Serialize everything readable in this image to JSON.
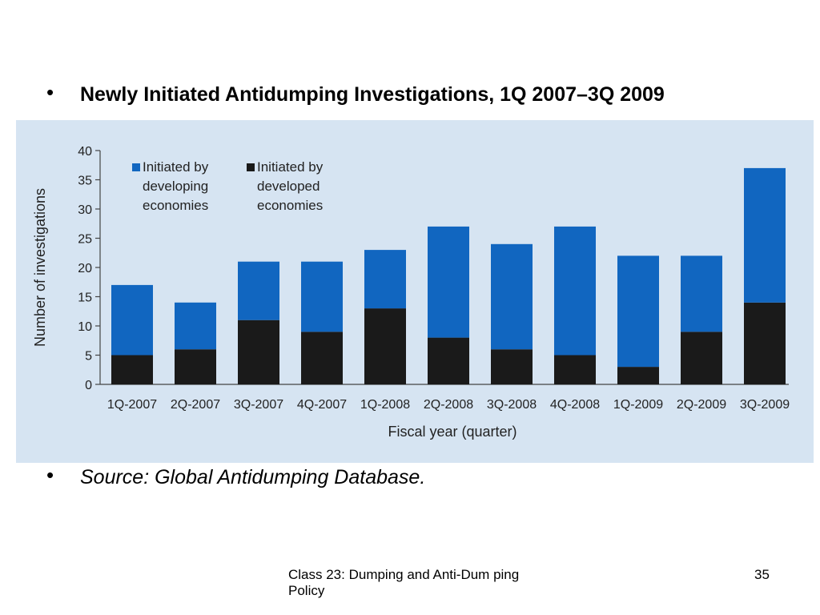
{
  "slide": {
    "bullets": [
      "Newly Initiated Antidumping Investigations, 1Q 2007–3Q 2009",
      "Source: Global Antidumping Database."
    ],
    "footer_text": "Class 23:  Dumping and Anti-Dum ping Policy",
    "page_number": "35",
    "bullet_char": "•"
  },
  "colors": {
    "developing": "#1166c0",
    "developed": "#1a1a1a",
    "panel_bg": "#d6e4f2",
    "axis": "#444444"
  },
  "chart_data": {
    "type": "bar",
    "stacked": true,
    "title": "Newly Initiated Antidumping Investigations, 1Q 2007–3Q 2009",
    "xlabel": "Fiscal year (quarter)",
    "ylabel": "Number of investigations",
    "ylim": [
      0,
      40
    ],
    "yticks": [
      0,
      5,
      10,
      15,
      20,
      25,
      30,
      35,
      40
    ],
    "grid": false,
    "legend_position": "top-left",
    "categories": [
      "1Q-2007",
      "2Q-2007",
      "3Q-2007",
      "4Q-2007",
      "1Q-2008",
      "2Q-2008",
      "3Q-2008",
      "4Q-2008",
      "1Q-2009",
      "2Q-2009",
      "3Q-2009"
    ],
    "series": [
      {
        "name": "Initiated by developed economies",
        "legend_lines": [
          "Initiated by",
          "developed",
          "economies"
        ],
        "values": [
          5,
          6,
          11,
          9,
          13,
          8,
          6,
          5,
          3,
          9,
          14
        ]
      },
      {
        "name": "Initiated by developing economies",
        "legend_lines": [
          "Initiated by",
          "developing",
          "economies"
        ],
        "values": [
          12,
          8,
          10,
          12,
          10,
          19,
          18,
          22,
          19,
          13,
          23
        ]
      }
    ],
    "totals": [
      17,
      14,
      21,
      21,
      23,
      27,
      24,
      27,
      22,
      22,
      37
    ]
  }
}
